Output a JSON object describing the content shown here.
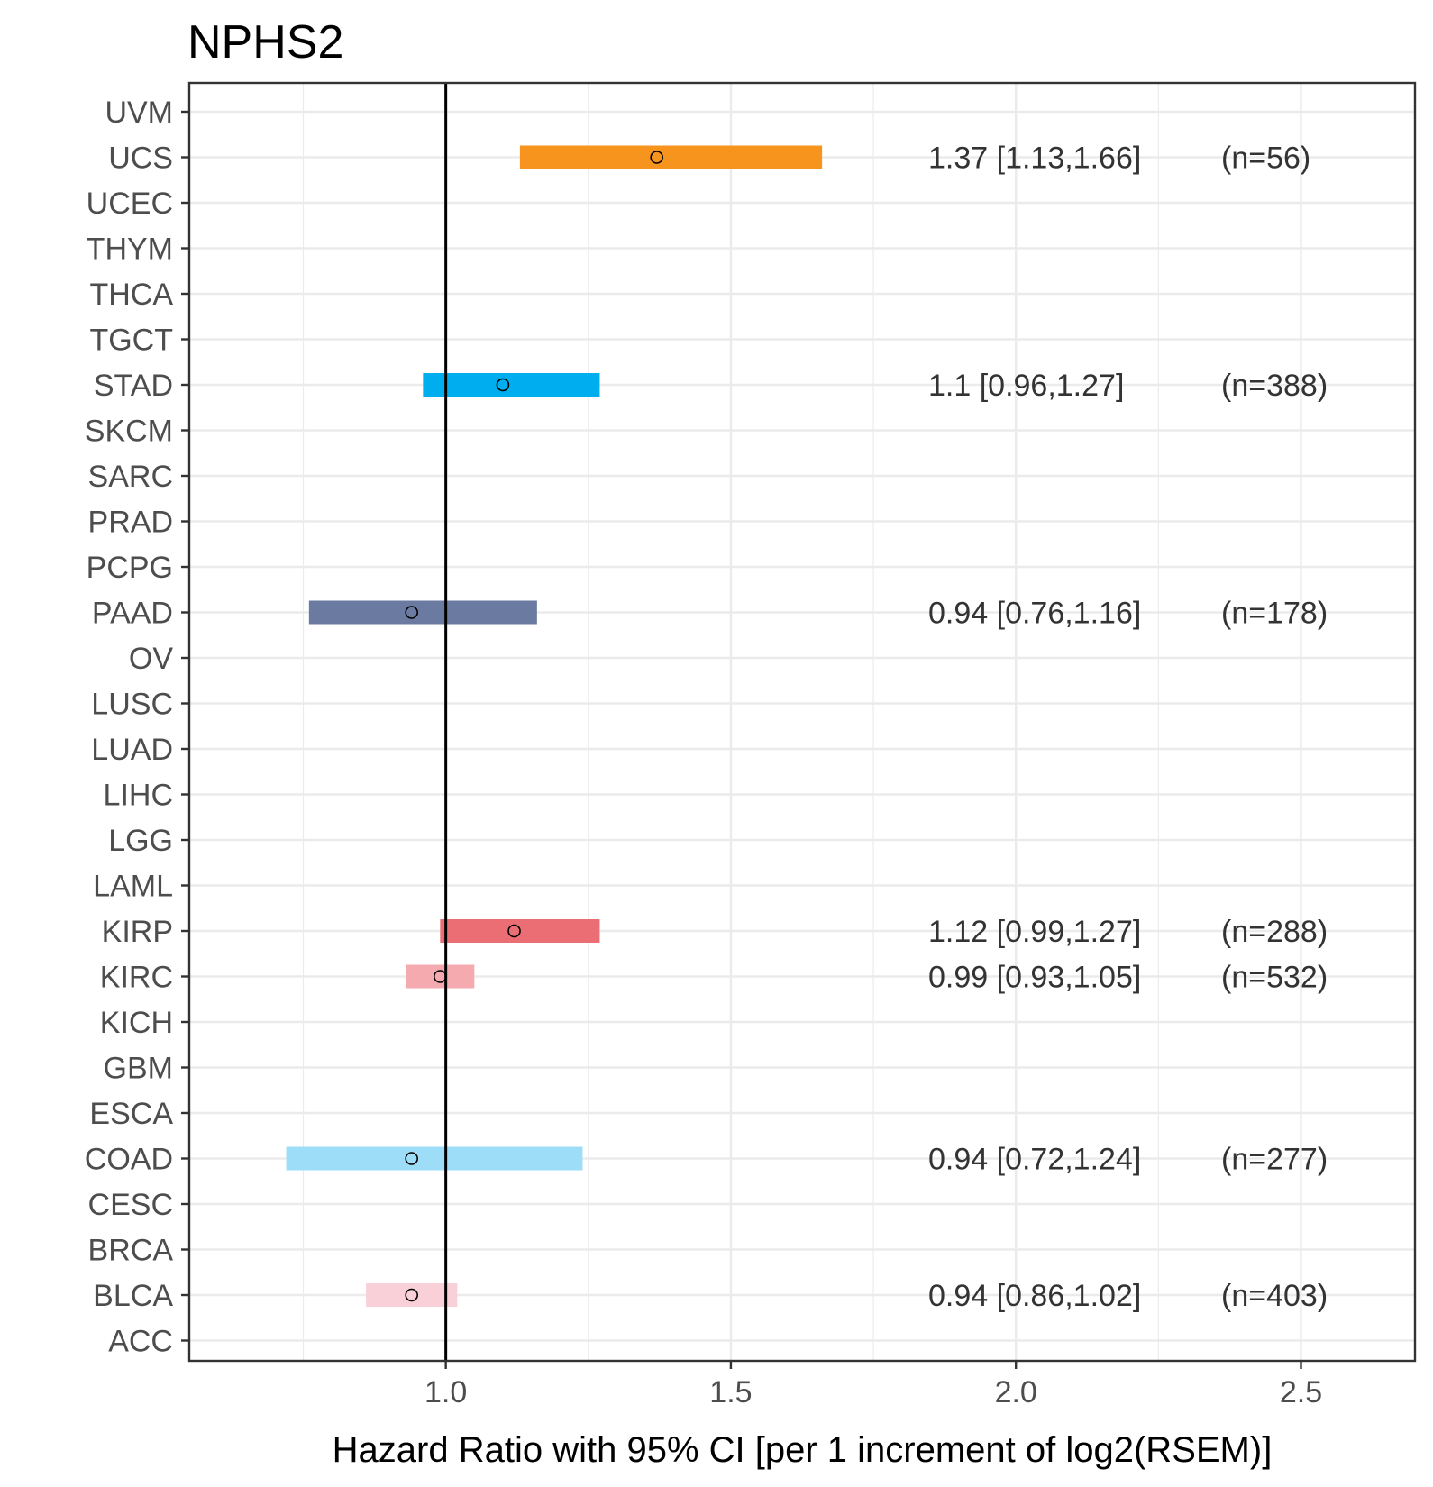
{
  "chart_data": {
    "type": "forest",
    "title": "NPHS2",
    "xlabel": "Hazard Ratio with 95% CI [per 1 increment of log2(RSEM)]",
    "ylabel": "",
    "xlim": [
      0.55,
      2.7
    ],
    "xticks": [
      1.0,
      1.5,
      2.0,
      2.5
    ],
    "xtick_labels": [
      "1.0",
      "1.5",
      "2.0",
      "2.5"
    ],
    "reference_line": 1.0,
    "categories": [
      "UVM",
      "UCS",
      "UCEC",
      "THYM",
      "THCA",
      "TGCT",
      "STAD",
      "SKCM",
      "SARC",
      "PRAD",
      "PCPG",
      "PAAD",
      "OV",
      "LUSC",
      "LUAD",
      "LIHC",
      "LGG",
      "LAML",
      "KIRP",
      "KIRC",
      "KICH",
      "GBM",
      "ESCA",
      "COAD",
      "CESC",
      "BRCA",
      "BLCA",
      "ACC"
    ],
    "series": [
      {
        "name": "UCS",
        "hr": 1.37,
        "lower": 1.13,
        "upper": 1.66,
        "label": "1.37 [1.13,1.66]",
        "n": "(n=56)",
        "color": "#F7941D"
      },
      {
        "name": "STAD",
        "hr": 1.1,
        "lower": 0.96,
        "upper": 1.27,
        "label": "1.1 [0.96,1.27]",
        "n": "(n=388)",
        "color": "#00AEEF"
      },
      {
        "name": "PAAD",
        "hr": 0.94,
        "lower": 0.76,
        "upper": 1.16,
        "label": "0.94 [0.76,1.16]",
        "n": "(n=178)",
        "color": "#6B7AA1"
      },
      {
        "name": "KIRP",
        "hr": 1.12,
        "lower": 0.99,
        "upper": 1.27,
        "label": "1.12 [0.99,1.27]",
        "n": "(n=288)",
        "color": "#EB6E75"
      },
      {
        "name": "KIRC",
        "hr": 0.99,
        "lower": 0.93,
        "upper": 1.05,
        "label": "0.99 [0.93,1.05]",
        "n": "(n=532)",
        "color": "#F4AAAE"
      },
      {
        "name": "COAD",
        "hr": 0.94,
        "lower": 0.72,
        "upper": 1.24,
        "label": "0.94 [0.72,1.24]",
        "n": "(n=277)",
        "color": "#9EDDF8"
      },
      {
        "name": "BLCA",
        "hr": 0.94,
        "lower": 0.86,
        "upper": 1.02,
        "label": "0.94 [0.86,1.02]",
        "n": "(n=403)",
        "color": "#F9D0D7"
      }
    ],
    "grid": true,
    "legend": "none"
  },
  "colors": {
    "grid": "#ebebeb",
    "panel_border": "#333333",
    "reference_line": "#000000",
    "tick_text": "#4d4d4d",
    "annotation_text": "#333333"
  }
}
